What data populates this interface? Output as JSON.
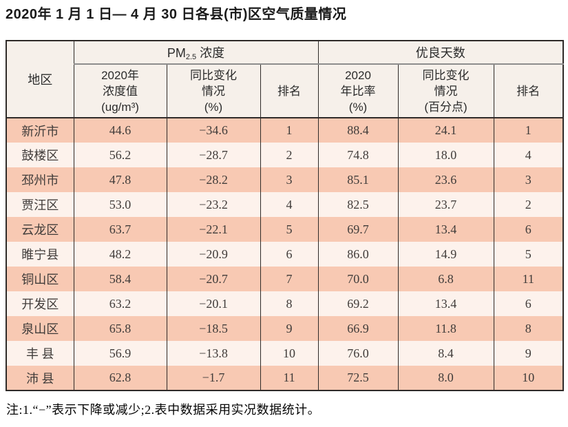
{
  "title": "2020年 1 月 1 日— 4 月 30 日各县(市)区空气质量情况",
  "note": "注:1.“−”表示下降或减少;2.表中数据采用实况数据统计。",
  "table": {
    "header": {
      "region": "地区",
      "pm25_group": {
        "pre": "PM",
        "sub": "2.5",
        "post": "浓度"
      },
      "good_days_group": "优良天数",
      "sub": [
        {
          "lines": [
            "2020年",
            "浓度值",
            "(ug/m³)"
          ]
        },
        {
          "lines": [
            "同比变化",
            "情况",
            "(%)"
          ]
        },
        {
          "lines": [
            "排名"
          ]
        },
        {
          "lines": [
            "2020",
            "年比率",
            "(%)"
          ]
        },
        {
          "lines": [
            "同比变化",
            "情况",
            "(百分点)"
          ]
        },
        {
          "lines": [
            "排名"
          ]
        }
      ]
    },
    "rows": [
      [
        "新沂市",
        "44.6",
        "−34.6",
        "1",
        "88.4",
        "24.1",
        "1"
      ],
      [
        "鼓楼区",
        "56.2",
        "−28.7",
        "2",
        "74.8",
        "18.0",
        "4"
      ],
      [
        "邳州市",
        "47.8",
        "−28.2",
        "3",
        "85.1",
        "23.6",
        "3"
      ],
      [
        "贾汪区",
        "53.0",
        "−23.2",
        "4",
        "82.5",
        "23.7",
        "2"
      ],
      [
        "云龙区",
        "63.7",
        "−22.1",
        "5",
        "69.7",
        "13.4",
        "6"
      ],
      [
        "睢宁县",
        "48.2",
        "−20.9",
        "6",
        "86.0",
        "14.9",
        "5"
      ],
      [
        "铜山区",
        "58.4",
        "−20.7",
        "7",
        "70.0",
        "6.8",
        "11"
      ],
      [
        "开发区",
        "63.2",
        "−20.1",
        "8",
        "69.2",
        "13.4",
        "6"
      ],
      [
        "泉山区",
        "65.8",
        "−18.5",
        "9",
        "66.9",
        "11.8",
        "8"
      ],
      [
        "丰 县",
        "56.9",
        "−13.8",
        "10",
        "76.0",
        "8.4",
        "9"
      ],
      [
        "沛 县",
        "62.8",
        "−1.7",
        "11",
        "72.5",
        "8.0",
        "10"
      ]
    ],
    "colors": {
      "row_odd_bg": "#f8c9b3",
      "row_even_bg": "#fdf2ec",
      "header_bg": "#f6f0ea",
      "border_dark": "#2e2a28",
      "group_divider_gray": "#8d8d8d"
    }
  }
}
